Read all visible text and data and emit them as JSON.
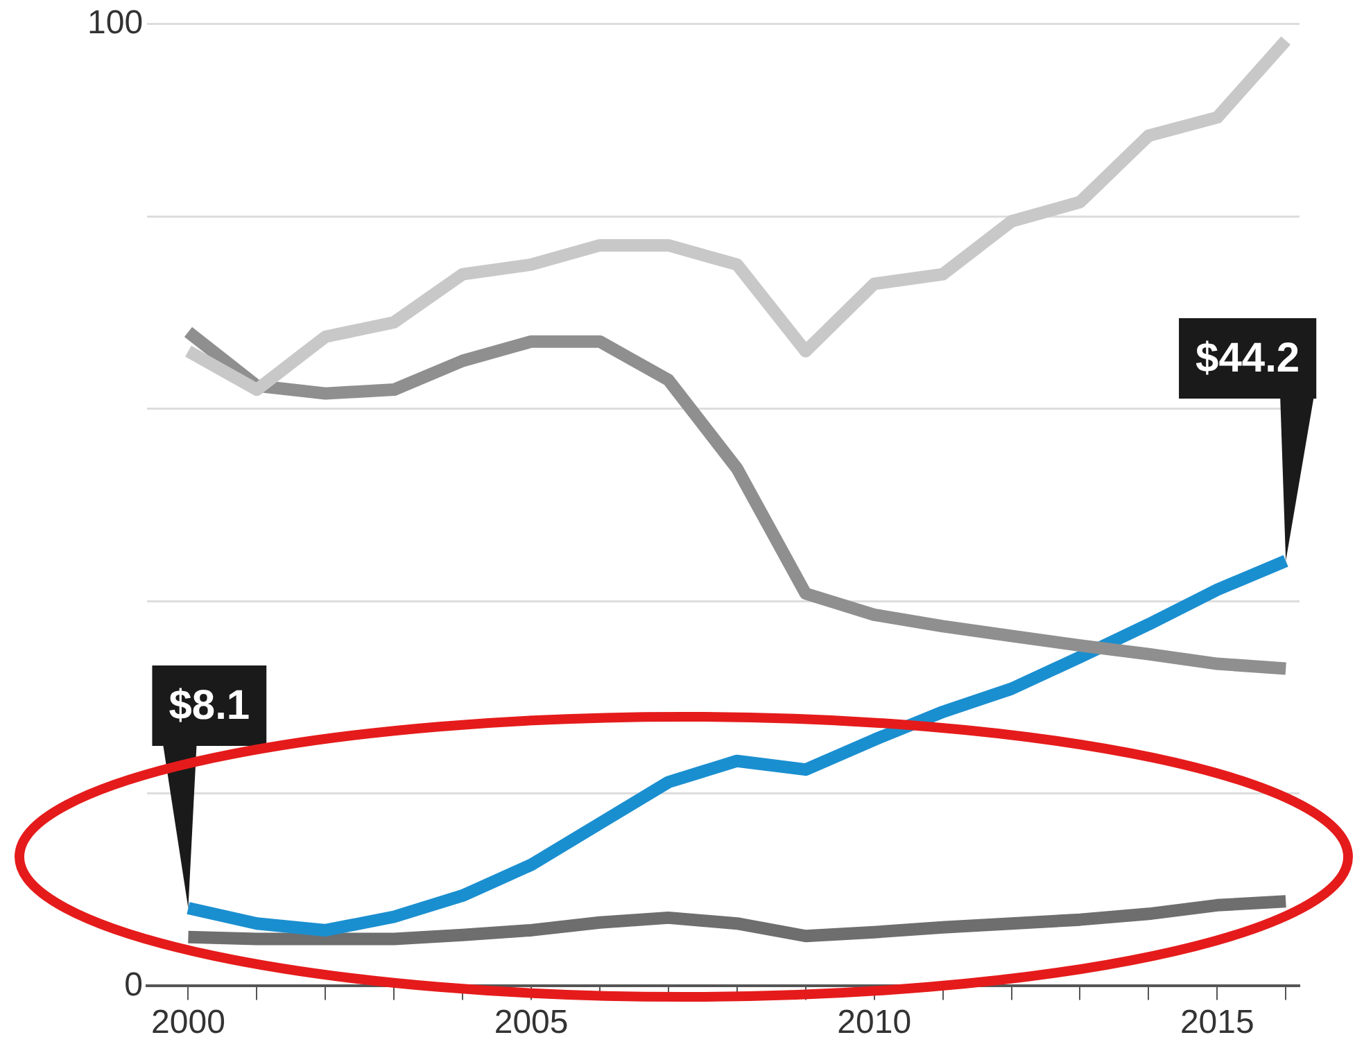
{
  "chart_data": {
    "type": "line",
    "x": [
      2000,
      2001,
      2002,
      2003,
      2004,
      2005,
      2006,
      2007,
      2008,
      2009,
      2010,
      2011,
      2012,
      2013,
      2014,
      2015,
      2016
    ],
    "series": [
      {
        "color": "#c8c8c8",
        "values": [
          66,
          62,
          67.5,
          69,
          74,
          75,
          77,
          77,
          75,
          66,
          73,
          74,
          79.5,
          81.5,
          88.4,
          90.3,
          98.3
        ]
      },
      {
        "color": "#8f8f8f",
        "values": [
          68,
          62.4,
          61.6,
          62,
          65,
          67,
          67,
          63,
          53.8,
          40.8,
          38.6,
          37.4,
          36.4,
          35.4,
          34.5,
          33.5,
          33
        ]
      },
      {
        "color": "#1a8fd0",
        "values": [
          8.1,
          6.5,
          5.8,
          7.2,
          9.4,
          12.6,
          16.9,
          21.2,
          23.4,
          22.5,
          25.6,
          28.5,
          30.9,
          34.2,
          37.6,
          41.2,
          44.2
        ]
      },
      {
        "color": "#6e6e6e",
        "values": [
          5.1,
          4.9,
          4.9,
          4.9,
          5.3,
          5.8,
          6.6,
          7.1,
          6.5,
          5.2,
          5.6,
          6.1,
          6.5,
          6.9,
          7.5,
          8.4,
          8.8
        ]
      }
    ],
    "xlim": [
      1999.4,
      2016.2
    ],
    "xticks": [
      2000,
      {
        "value": 2001,
        "label": null
      },
      {
        "value": 2002,
        "label": null
      },
      {
        "value": 2003,
        "label": null
      },
      {
        "value": 2004,
        "label": null
      },
      2005,
      {
        "value": 2006,
        "label": null
      },
      {
        "value": 2007,
        "label": null
      },
      {
        "value": 2008,
        "label": null
      },
      {
        "value": 2009,
        "label": null
      },
      2010,
      {
        "value": 2011,
        "label": null
      },
      {
        "value": 2012,
        "label": null
      },
      {
        "value": 2013,
        "label": null
      },
      {
        "value": 2014,
        "label": null
      },
      2015,
      {
        "value": 2016,
        "label": null
      }
    ],
    "ylim": [
      0,
      100
    ],
    "yticks": [
      0,
      {
        "value": 20,
        "label": null
      },
      {
        "value": 40,
        "label": null
      },
      {
        "value": 60,
        "label": null
      },
      {
        "value": 80,
        "label": null
      },
      100
    ],
    "grid": "y",
    "legend": false,
    "marker": "none",
    "line_style": "solid",
    "annotations": [
      {
        "text": "$8.1",
        "x": 2000,
        "y": 8.1
      },
      {
        "text": "$44.2",
        "x": 2016,
        "y": 44.2
      }
    ]
  }
}
